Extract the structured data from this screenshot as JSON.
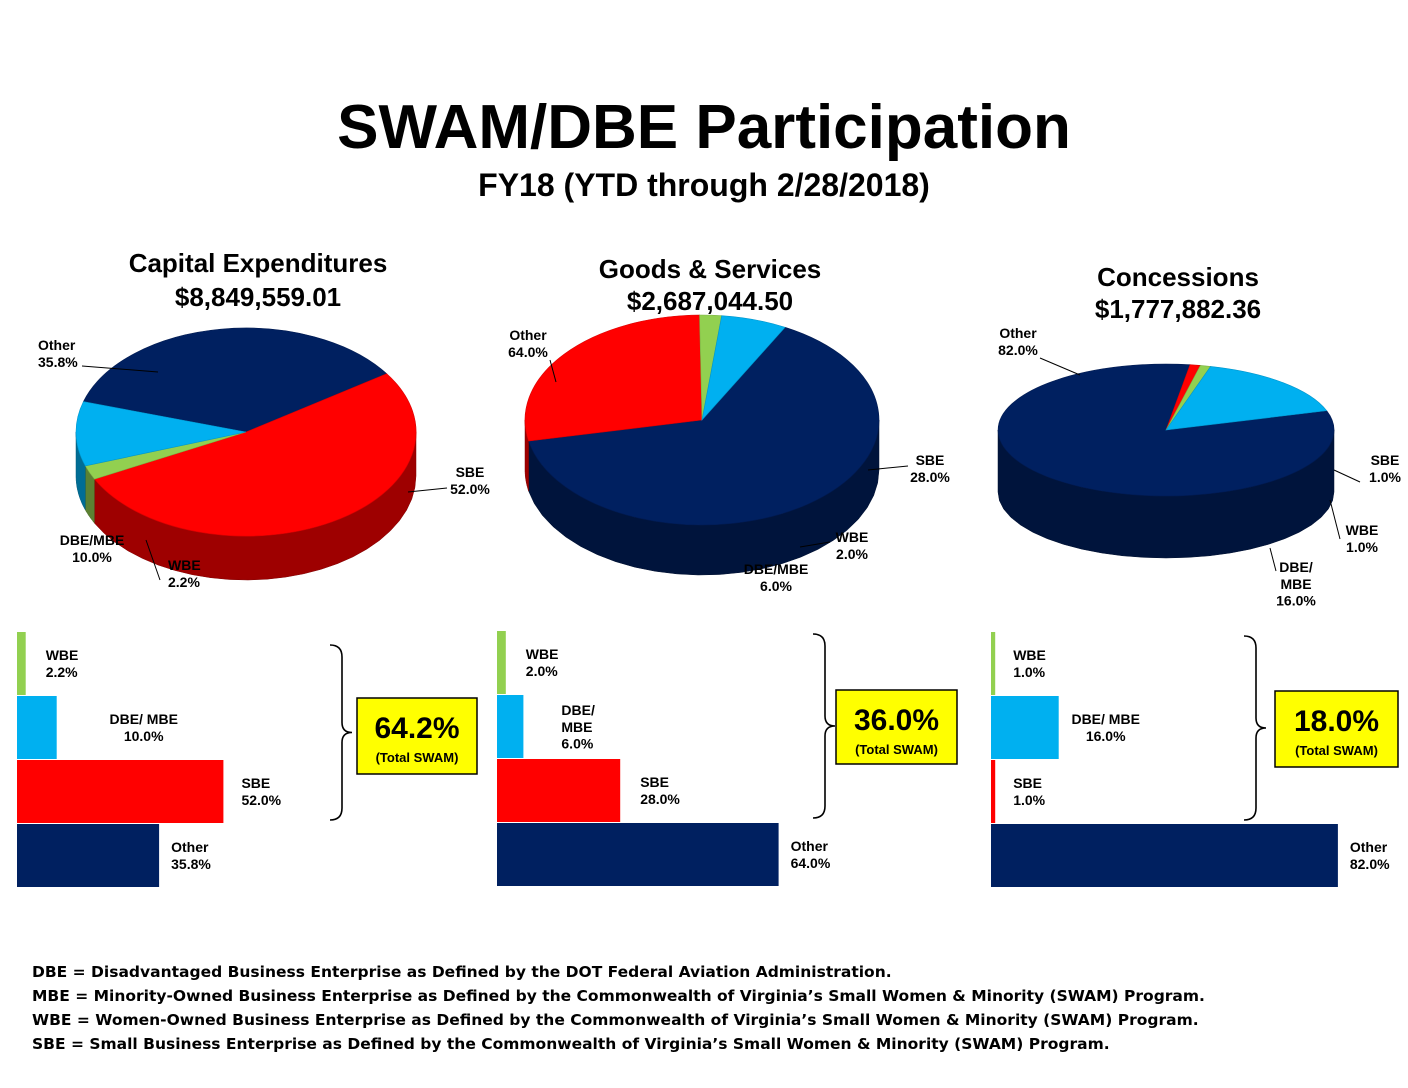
{
  "title": "SWAM/DBE Participation",
  "subtitle": "FY18 (YTD through 2/28/2018)",
  "colors": {
    "WBE": "#92D050",
    "DBE/MBE": "#00B0F0",
    "SBE": "#FF0000",
    "Other": "#002060",
    "swam_box": "#FFFF00"
  },
  "chart_data": [
    {
      "type": "pie",
      "title": "Capital Expenditures",
      "amount": "$8,849,559.01",
      "series": [
        {
          "key": "Other",
          "label": "Other",
          "value": 35.8,
          "display": "35.8%"
        },
        {
          "key": "SBE",
          "label": "SBE",
          "value": 52.0,
          "display": "52.0%"
        },
        {
          "key": "WBE",
          "label": "WBE",
          "value": 2.2,
          "display": "2.2%"
        },
        {
          "key": "DBE/MBE",
          "label": "DBE/MBE",
          "value": 10.0,
          "display": "10.0%"
        }
      ],
      "bars": [
        {
          "key": "WBE",
          "label": "WBE",
          "value": 2.2,
          "display": "2.2%"
        },
        {
          "key": "DBE/MBE",
          "label": "DBE/ MBE",
          "value": 10.0,
          "display": "10.0%"
        },
        {
          "key": "SBE",
          "label": "SBE",
          "value": 52.0,
          "display": "52.0%"
        },
        {
          "key": "Other",
          "label": "Other",
          "value": 35.8,
          "display": "35.8%"
        }
      ],
      "total_swam": "64.2%",
      "total_swam_label": "(Total SWAM)"
    },
    {
      "type": "pie",
      "title": "Goods & Services",
      "amount": "$2,687,044.50",
      "series": [
        {
          "key": "Other",
          "label": "Other",
          "value": 64.0,
          "display": "64.0%"
        },
        {
          "key": "SBE",
          "label": "SBE",
          "value": 28.0,
          "display": "28.0%"
        },
        {
          "key": "WBE",
          "label": "WBE",
          "value": 2.0,
          "display": "2.0%"
        },
        {
          "key": "DBE/MBE",
          "label": "DBE/MBE",
          "value": 6.0,
          "display": "6.0%"
        }
      ],
      "bars": [
        {
          "key": "WBE",
          "label": "WBE",
          "value": 2.0,
          "display": "2.0%"
        },
        {
          "key": "DBE/MBE",
          "label": "DBE/ MBE",
          "value": 6.0,
          "display": "6.0%"
        },
        {
          "key": "SBE",
          "label": "SBE",
          "value": 28.0,
          "display": "28.0%"
        },
        {
          "key": "Other",
          "label": "Other",
          "value": 64.0,
          "display": "64.0%"
        }
      ],
      "total_swam": "36.0%",
      "total_swam_label": "(Total SWAM)"
    },
    {
      "type": "pie",
      "title": "Concessions",
      "amount": "$1,777,882.36",
      "series": [
        {
          "key": "Other",
          "label": "Other",
          "value": 82.0,
          "display": "82.0%"
        },
        {
          "key": "SBE",
          "label": "SBE",
          "value": 1.0,
          "display": "1.0%"
        },
        {
          "key": "WBE",
          "label": "WBE",
          "value": 1.0,
          "display": "1.0%"
        },
        {
          "key": "DBE/MBE",
          "label": "DBE/ MBE",
          "value": 16.0,
          "display": "16.0%"
        }
      ],
      "bars": [
        {
          "key": "WBE",
          "label": "WBE",
          "value": 1.0,
          "display": "1.0%"
        },
        {
          "key": "DBE/MBE",
          "label": "DBE/ MBE",
          "value": 16.0,
          "display": "16.0%"
        },
        {
          "key": "SBE",
          "label": "SBE",
          "value": 1.0,
          "display": "1.0%"
        },
        {
          "key": "Other",
          "label": "Other",
          "value": 82.0,
          "display": "82.0%"
        }
      ],
      "total_swam": "18.0%",
      "total_swam_label": "(Total SWAM)"
    }
  ],
  "footnotes": {
    "dbe": "DBE = Disadvantaged Business Enterprise as Defined by the DOT Federal Aviation Administration.",
    "mbe": "MBE = Minority-Owned Business Enterprise as Defined by the Commonwealth of Virginia’s Small Women & Minority (SWAM) Program.",
    "wbe": "WBE = Women-Owned Business Enterprise as Defined by the Commonwealth of Virginia’s Small Women & Minority (SWAM) Program.",
    "sbe": "SBE = Small Business Enterprise as Defined by the Commonwealth of Virginia’s Small Women & Minority (SWAM) Program."
  }
}
